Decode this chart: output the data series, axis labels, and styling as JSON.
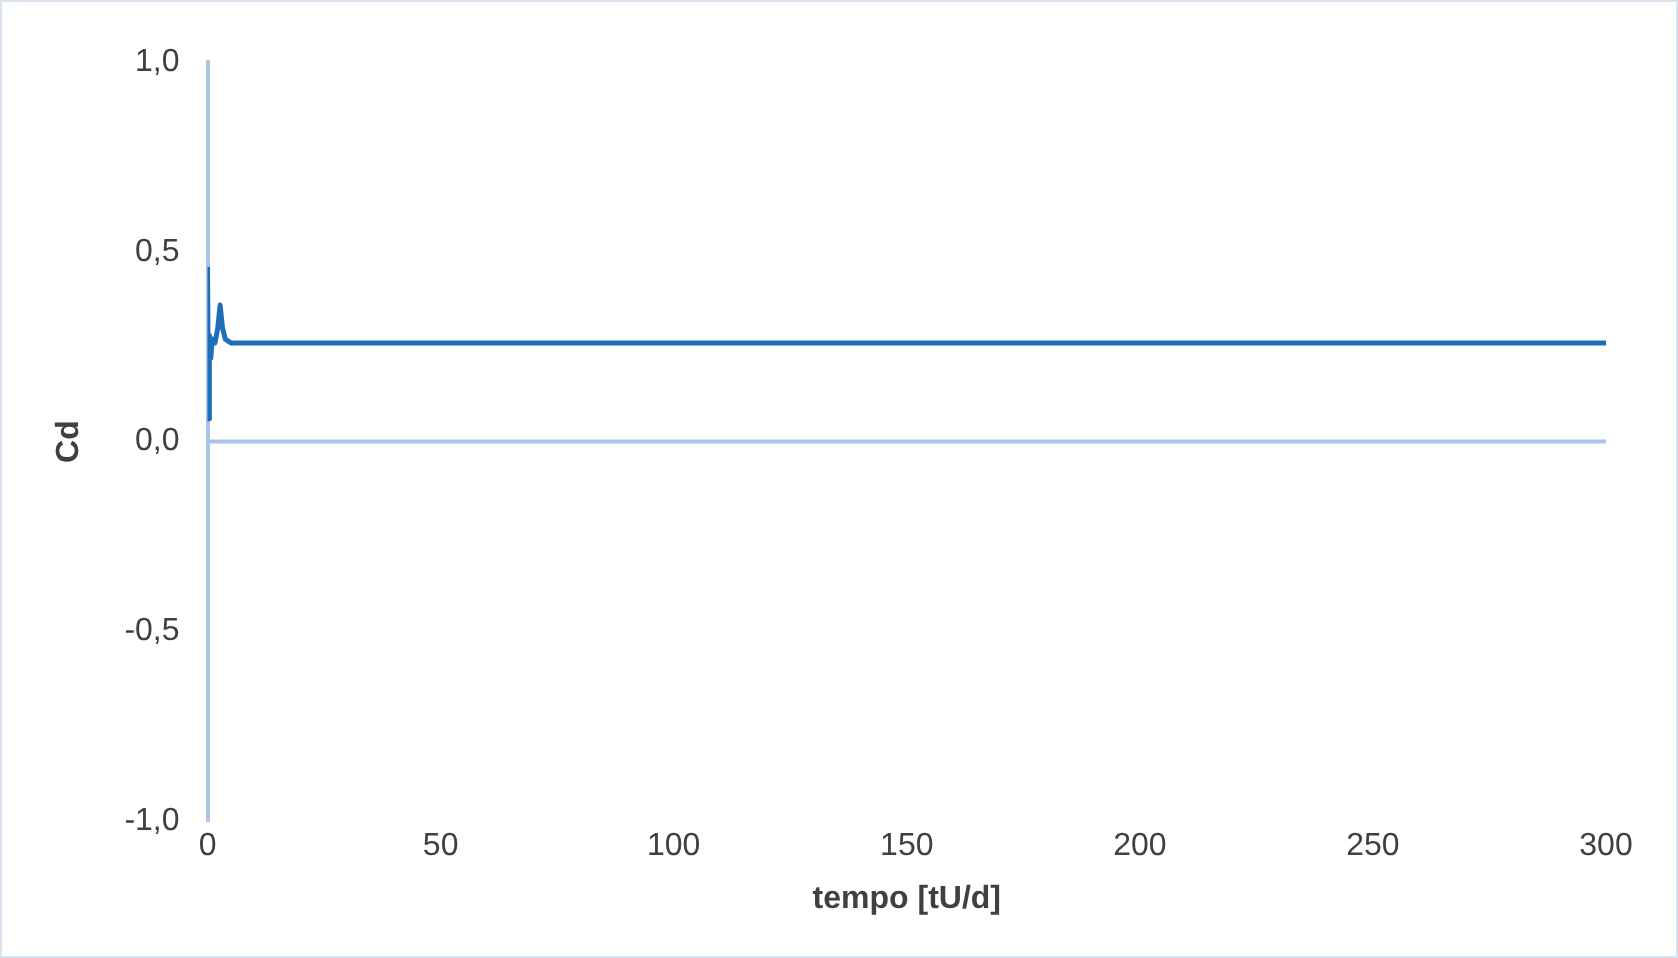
{
  "chart_data": {
    "type": "line",
    "xlabel": "tempo [tU/d]",
    "ylabel": "Cd",
    "x": [
      0,
      0.2,
      0.4,
      0.7,
      1.0,
      1.6,
      2.2,
      2.7,
      3.2,
      3.8,
      5,
      8,
      300
    ],
    "series": [
      {
        "color": "#1f6fb8",
        "values": [
          0.46,
          0.06,
          0.28,
          0.22,
          0.27,
          0.26,
          0.3,
          0.36,
          0.3,
          0.27,
          0.26,
          0.26,
          0.26
        ]
      }
    ],
    "xlim": [
      0,
      300
    ],
    "xticks": [
      0,
      50,
      100,
      150,
      200,
      250,
      300
    ],
    "ylim": [
      -1,
      1
    ],
    "yticks": [
      {
        "value": -1,
        "label": "-1,0"
      },
      {
        "value": -0.5,
        "label": "-0,5"
      },
      {
        "value": 0,
        "label": "0,0"
      },
      {
        "value": 0.5,
        "label": "0,5"
      },
      {
        "value": 1,
        "label": "1,0"
      }
    ],
    "ref_lines": [
      {
        "axis": "y",
        "value": 0,
        "color": "#a9c4e6"
      }
    ],
    "grid": false,
    "legend": false,
    "marker": "none",
    "line_style": "solid"
  }
}
